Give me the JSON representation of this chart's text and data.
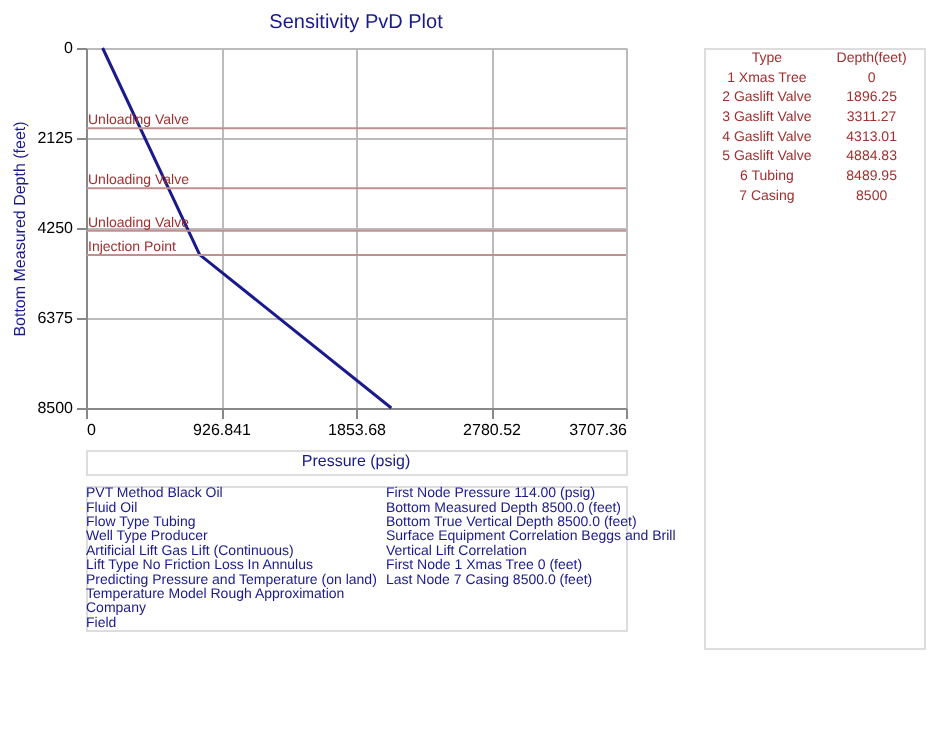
{
  "chart_data": [
    {
      "type": "line",
      "title": "Sensitivity PvD Plot",
      "xlabel": "Pressure (psig)",
      "ylabel": "Bottom Measured Depth (feet)",
      "x": [
        114,
        780,
        2096
      ],
      "series": [
        {
          "color": "#1a1a8c",
          "values": [
            0,
            4880,
            8500
          ]
        }
      ],
      "xlim": [
        0,
        3707.36
      ],
      "xticks": [
        0,
        926.841,
        1853.68,
        2780.52,
        3707.36
      ],
      "ylim": [
        8500,
        0
      ],
      "yticks": [
        0,
        2125,
        4250,
        6375,
        8500
      ],
      "grid": true,
      "ref_lines": [
        {
          "axis": "y",
          "value": 1896.25,
          "label": "Unloading Valve",
          "color": "#c09090"
        },
        {
          "axis": "y",
          "value": 3311.27,
          "label": "Unloading Valve",
          "color": "#c09090"
        },
        {
          "axis": "y",
          "value": 4313.01,
          "label": "Unloading Valve",
          "color": "#c09090"
        },
        {
          "axis": "y",
          "value": 4884.83,
          "label": "Injection Point",
          "color": "#c09090"
        }
      ],
      "annotations": [
        "PVT Method Black Oil",
        "Fluid Oil",
        "Flow Type Tubing",
        "Well Type Producer",
        "Artificial Lift Gas Lift (Continuous)",
        "Lift Type No Friction Loss In Annulus",
        "Predicting Pressure and Temperature (on land)",
        "Temperature Model Rough Approximation",
        "Company",
        "Field",
        "First Node Pressure 114.00 (psig)",
        "Bottom Measured Depth 8500.0 (feet)",
        "Bottom True Vertical Depth 8500.0 (feet)",
        "Surface Equipment Correlation Beggs and Brill",
        "Vertical Lift Correlation",
        "First Node 1 Xmas Tree 0 (feet)",
        "Last Node 7 Casing 8500.0 (feet)"
      ]
    },
    {
      "type": "other",
      "annotations": [
        "Type",
        "Depth(feet)",
        "1 Xmas Tree",
        "0",
        "2 Gaslift Valve",
        "1896.25",
        "3 Gaslift Valve",
        "3311.27",
        "4 Gaslift Valve",
        "4313.01",
        "5 Gaslift Valve",
        "4884.83",
        "6 Tubing",
        "8489.95",
        "7 Casing",
        "8500"
      ]
    }
  ]
}
